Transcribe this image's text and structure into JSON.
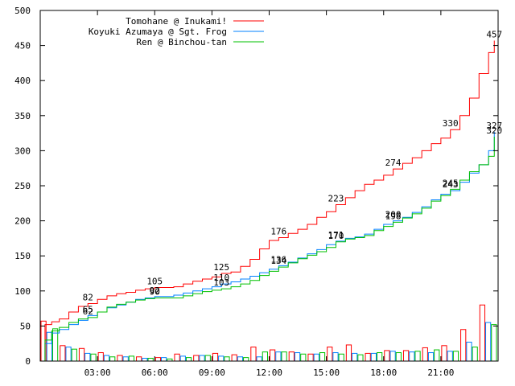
{
  "chart_data": {
    "type": "line",
    "title": "",
    "xlabel": "",
    "ylabel": "",
    "ylim": [
      0,
      500
    ],
    "xlim": [
      0,
      24
    ],
    "grid": false,
    "legend_position": "top-left",
    "y_ticks": [
      "0",
      "50",
      "100",
      "150",
      "200",
      "250",
      "300",
      "350",
      "400",
      "450",
      "500"
    ],
    "x_ticks": [
      {
        "x": 3,
        "label": "03:00"
      },
      {
        "x": 6,
        "label": "06:00"
      },
      {
        "x": 9,
        "label": "09:00"
      },
      {
        "x": 12,
        "label": "12:00"
      },
      {
        "x": 15,
        "label": "15:00"
      },
      {
        "x": 18,
        "label": "18:00"
      },
      {
        "x": 21,
        "label": "21:00"
      }
    ],
    "series": [
      {
        "name": "Tomohane @ Inukami!",
        "color": "#ff0000",
        "cumulative": [
          [
            0,
            0
          ],
          [
            0.25,
            52
          ],
          [
            0.6,
            56
          ],
          [
            1,
            60
          ],
          [
            1.5,
            70
          ],
          [
            2,
            78
          ],
          [
            2.5,
            82
          ],
          [
            3,
            88
          ],
          [
            3.5,
            93
          ],
          [
            4,
            96
          ],
          [
            4.5,
            98
          ],
          [
            5,
            101
          ],
          [
            5.5,
            103
          ],
          [
            6,
            105
          ],
          [
            7,
            106
          ],
          [
            7.5,
            110
          ],
          [
            8,
            114
          ],
          [
            8.5,
            117
          ],
          [
            9,
            120
          ],
          [
            9.5,
            125
          ],
          [
            10,
            127
          ],
          [
            10.5,
            135
          ],
          [
            11,
            145
          ],
          [
            11.5,
            160
          ],
          [
            12,
            172
          ],
          [
            12.5,
            176
          ],
          [
            13,
            182
          ],
          [
            13.5,
            188
          ],
          [
            14,
            195
          ],
          [
            14.5,
            205
          ],
          [
            15,
            213
          ],
          [
            15.5,
            223
          ],
          [
            16,
            233
          ],
          [
            16.5,
            243
          ],
          [
            17,
            252
          ],
          [
            17.5,
            258
          ],
          [
            18,
            265
          ],
          [
            18.5,
            274
          ],
          [
            19,
            282
          ],
          [
            19.5,
            290
          ],
          [
            20,
            300
          ],
          [
            20.5,
            310
          ],
          [
            21,
            318
          ],
          [
            21.5,
            330
          ],
          [
            22,
            350
          ],
          [
            22.5,
            375
          ],
          [
            23,
            410
          ],
          [
            23.5,
            440
          ],
          [
            23.8,
            457
          ]
        ],
        "hourly": [
          57,
          22,
          18,
          12,
          8,
          6,
          5,
          10,
          8,
          11,
          9,
          20,
          16,
          13,
          10,
          20,
          23,
          11,
          15,
          15,
          19,
          22,
          45,
          80
        ]
      },
      {
        "name": "Koyuki Azumaya @ Sgt. Frog",
        "color": "#0080ff",
        "cumulative": [
          [
            0,
            0
          ],
          [
            0.25,
            25
          ],
          [
            0.6,
            40
          ],
          [
            1,
            45
          ],
          [
            1.5,
            52
          ],
          [
            2,
            58
          ],
          [
            2.5,
            65
          ],
          [
            3,
            70
          ],
          [
            3.5,
            76
          ],
          [
            4,
            80
          ],
          [
            4.5,
            84
          ],
          [
            5,
            88
          ],
          [
            5.5,
            90
          ],
          [
            6,
            92
          ],
          [
            7,
            94
          ],
          [
            7.5,
            97
          ],
          [
            8,
            100
          ],
          [
            8.5,
            103
          ],
          [
            9,
            106
          ],
          [
            9.5,
            110
          ],
          [
            10,
            113
          ],
          [
            10.5,
            117
          ],
          [
            11,
            121
          ],
          [
            11.5,
            126
          ],
          [
            12,
            131
          ],
          [
            12.5,
            136
          ],
          [
            13,
            141
          ],
          [
            13.5,
            147
          ],
          [
            14,
            153
          ],
          [
            14.5,
            159
          ],
          [
            15,
            166
          ],
          [
            15.5,
            171
          ],
          [
            16,
            175
          ],
          [
            16.5,
            177
          ],
          [
            17,
            181
          ],
          [
            17.5,
            188
          ],
          [
            18,
            195
          ],
          [
            18.5,
            200
          ],
          [
            19,
            205
          ],
          [
            19.5,
            212
          ],
          [
            20,
            220
          ],
          [
            20.5,
            230
          ],
          [
            21,
            238
          ],
          [
            21.5,
            243
          ],
          [
            22,
            255
          ],
          [
            22.5,
            268
          ],
          [
            23,
            280
          ],
          [
            23.5,
            300
          ],
          [
            23.8,
            327
          ]
        ],
        "hourly": [
          41,
          20,
          11,
          8,
          6,
          4,
          5,
          7,
          8,
          7,
          6,
          6,
          13,
          12,
          10,
          12,
          11,
          11,
          14,
          13,
          12,
          14,
          27,
          55
        ]
      },
      {
        "name": "Ren @ Binchou-tan",
        "color": "#00c000",
        "cumulative": [
          [
            0,
            0
          ],
          [
            0.25,
            30
          ],
          [
            0.6,
            43
          ],
          [
            1,
            48
          ],
          [
            1.5,
            55
          ],
          [
            2,
            60
          ],
          [
            2.5,
            62
          ],
          [
            3,
            70
          ],
          [
            3.5,
            77
          ],
          [
            4,
            81
          ],
          [
            4.5,
            84
          ],
          [
            5,
            87
          ],
          [
            5.5,
            89
          ],
          [
            6,
            90
          ],
          [
            7,
            90
          ],
          [
            7.5,
            93
          ],
          [
            8,
            96
          ],
          [
            8.5,
            99
          ],
          [
            9,
            101
          ],
          [
            9.5,
            103
          ],
          [
            10,
            106
          ],
          [
            10.5,
            110
          ],
          [
            11,
            115
          ],
          [
            11.5,
            122
          ],
          [
            12,
            128
          ],
          [
            12.5,
            134
          ],
          [
            13,
            140
          ],
          [
            13.5,
            146
          ],
          [
            14,
            151
          ],
          [
            14.5,
            156
          ],
          [
            15,
            162
          ],
          [
            15.5,
            170
          ],
          [
            16,
            174
          ],
          [
            16.5,
            176
          ],
          [
            17,
            179
          ],
          [
            17.5,
            186
          ],
          [
            18,
            192
          ],
          [
            18.5,
            198
          ],
          [
            19,
            204
          ],
          [
            19.5,
            210
          ],
          [
            20,
            218
          ],
          [
            20.5,
            228
          ],
          [
            21,
            236
          ],
          [
            21.5,
            245
          ],
          [
            22,
            258
          ],
          [
            22.5,
            270
          ],
          [
            23,
            280
          ],
          [
            23.5,
            292
          ],
          [
            23.8,
            320
          ]
        ],
        "hourly": [
          46,
          17,
          10,
          6,
          7,
          4,
          3,
          5,
          8,
          6,
          5,
          13,
          13,
          10,
          12,
          10,
          9,
          12,
          12,
          14,
          16,
          14,
          20,
          52
        ]
      }
    ],
    "annotations": [
      {
        "series": 0,
        "x": 2.5,
        "y": 82,
        "label": "82"
      },
      {
        "series": 0,
        "x": 6,
        "y": 105,
        "label": "105"
      },
      {
        "series": 0,
        "x": 9.5,
        "y": 125,
        "label": "125"
      },
      {
        "series": 0,
        "x": 12.5,
        "y": 176,
        "label": "176"
      },
      {
        "series": 0,
        "x": 15.5,
        "y": 223,
        "label": "223"
      },
      {
        "series": 0,
        "x": 18.5,
        "y": 274,
        "label": "274"
      },
      {
        "series": 0,
        "x": 21.5,
        "y": 330,
        "label": "330"
      },
      {
        "series": 0,
        "x": 23.8,
        "y": 457,
        "label": "457"
      },
      {
        "series": 1,
        "x": 2.5,
        "y": 65,
        "label": "65"
      },
      {
        "series": 1,
        "x": 6,
        "y": 92,
        "label": "92"
      },
      {
        "series": 1,
        "x": 9.5,
        "y": 110,
        "label": "110"
      },
      {
        "series": 1,
        "x": 12.5,
        "y": 136,
        "label": "136"
      },
      {
        "series": 1,
        "x": 15.5,
        "y": 171,
        "label": "171"
      },
      {
        "series": 1,
        "x": 18.5,
        "y": 200,
        "label": "200"
      },
      {
        "series": 1,
        "x": 21.5,
        "y": 243,
        "label": "243"
      },
      {
        "series": 1,
        "x": 23.8,
        "y": 327,
        "label": "327"
      },
      {
        "series": 2,
        "x": 2.5,
        "y": 62,
        "label": "62"
      },
      {
        "series": 2,
        "x": 6,
        "y": 90,
        "label": "90"
      },
      {
        "series": 2,
        "x": 9.5,
        "y": 103,
        "label": "103"
      },
      {
        "series": 2,
        "x": 12.5,
        "y": 134,
        "label": "134"
      },
      {
        "series": 2,
        "x": 15.5,
        "y": 170,
        "label": "170"
      },
      {
        "series": 2,
        "x": 18.5,
        "y": 198,
        "label": "198"
      },
      {
        "series": 2,
        "x": 21.5,
        "y": 245,
        "label": "245"
      },
      {
        "series": 2,
        "x": 23.8,
        "y": 320,
        "label": "320"
      }
    ]
  }
}
